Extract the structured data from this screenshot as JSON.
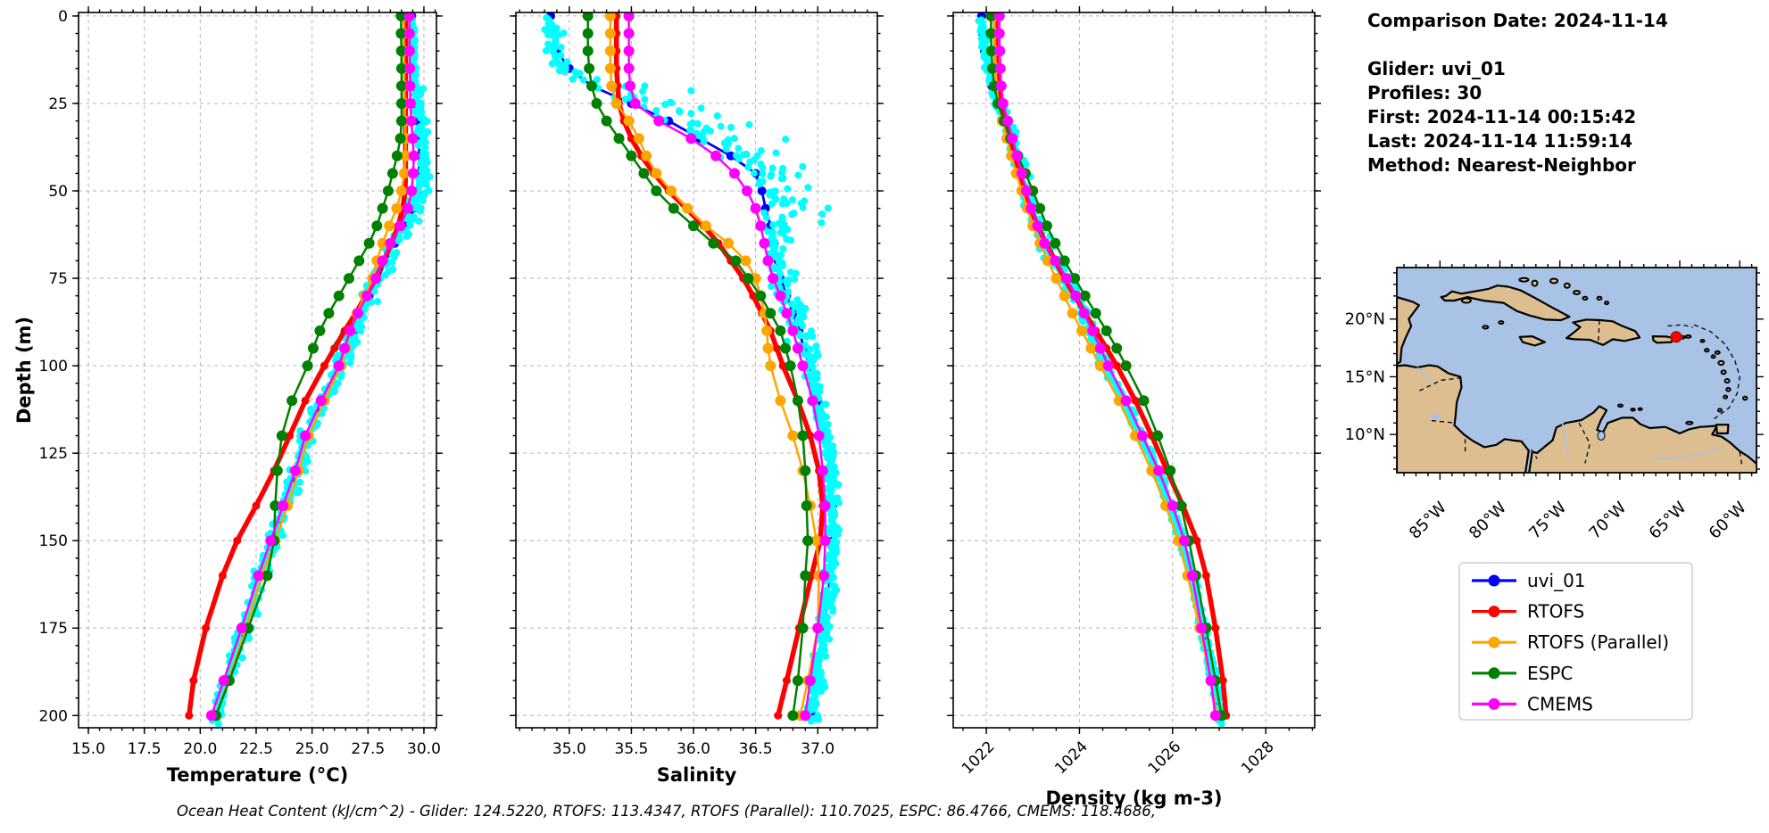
{
  "info_panel": {
    "title": "Comparison Date: 2024-11-14",
    "lines": [
      "Glider: uvi_01",
      "Profiles: 30",
      "First: 2024-11-14 00:15:42",
      "Last: 2024-11-14 11:59:14",
      "Method: Nearest-Neighbor"
    ]
  },
  "caption": "Ocean Heat Content (kJ/cm^2) - Glider: 124.5220,  RTOFS: 113.4347,  RTOFS (Parallel): 110.7025,  ESPC: 86.4766,  CMEMS: 118.4686,",
  "legend": {
    "entries": [
      {
        "label": "uvi_01",
        "color": "#0000ff"
      },
      {
        "label": "RTOFS",
        "color": "#ff0000"
      },
      {
        "label": "RTOFS (Parallel)",
        "color": "#ffa500"
      },
      {
        "label": "ESPC",
        "color": "#008000"
      },
      {
        "label": "CMEMS",
        "color": "#ff00ff"
      }
    ]
  },
  "map": {
    "ocean_color": "#a9c3e6",
    "land_color": "#ddbe90",
    "marker": {
      "lon": -65.3,
      "lat": 18.45,
      "color": "#ff0000"
    },
    "lon_ticks": [
      {
        "v": -85,
        "label": "85°W"
      },
      {
        "v": -80,
        "label": "80°W"
      },
      {
        "v": -75,
        "label": "75°W"
      },
      {
        "v": -70,
        "label": "70°W"
      },
      {
        "v": -65,
        "label": "65°W"
      },
      {
        "v": -60,
        "label": "60°W"
      }
    ],
    "lat_ticks": [
      {
        "v": 20,
        "label": "20°N"
      },
      {
        "v": 15,
        "label": "15°N"
      },
      {
        "v": 10,
        "label": "10°N"
      }
    ]
  },
  "chart_data": {
    "type": "line",
    "ylabel": "Depth (m)",
    "yrange": [
      -1,
      203.5
    ],
    "yticks": [
      0,
      25,
      50,
      75,
      100,
      125,
      150,
      175,
      200
    ],
    "ytick_labels": [
      "0",
      "25",
      "50",
      "75",
      "100",
      "125",
      "150",
      "175",
      "200"
    ],
    "y_minor_step": 5,
    "grid": true,
    "depths": [
      0,
      5,
      10,
      15,
      20,
      25,
      30,
      35,
      40,
      45,
      50,
      55,
      60,
      65,
      70,
      75,
      80,
      85,
      90,
      95,
      100,
      110,
      120,
      130,
      140,
      150,
      160,
      175,
      190,
      200
    ],
    "series_meta": [
      {
        "name": "uvi_01",
        "color": "#0000ff",
        "lw": 2.8,
        "marker_r": 5
      },
      {
        "name": "RTOFS",
        "color": "#ff0000",
        "lw": 5.5,
        "marker_r": 4.5
      },
      {
        "name": "RTOFS (Parallel)",
        "color": "#ffa500",
        "lw": 2.5,
        "marker_r": 6
      },
      {
        "name": "ESPC",
        "color": "#008000",
        "lw": 2.5,
        "marker_r": 6
      },
      {
        "name": "CMEMS",
        "color": "#ff00ff",
        "lw": 2.5,
        "marker_r": 6
      }
    ],
    "scatter_meta": {
      "label": "glider raw profiles",
      "color": "#00ffff",
      "marker_r": 4
    },
    "panels": [
      {
        "xlabel": "Temperature (°C)",
        "xrange": [
          14.56,
          30.56
        ],
        "xticks": [
          15,
          17.5,
          20,
          22.5,
          25,
          27.5,
          30
        ],
        "xtick_labels": [
          "15.0",
          "17.5",
          "20.0",
          "22.5",
          "25.0",
          "27.5",
          "30.0"
        ],
        "x_minor_step": 0.5,
        "rotate_xticks": false,
        "scatter_spread": [
          [
            20,
            0.1,
            0.1
          ],
          [
            52,
            0.38,
            0.12
          ],
          [
            95,
            0.0,
            0.4
          ],
          [
            150,
            0.0,
            0.34
          ],
          [
            999,
            0.0,
            0.3
          ]
        ],
        "series": {
          "uvi_01": [
            29.45,
            29.46,
            29.48,
            29.5,
            29.55,
            29.62,
            29.7,
            29.76,
            29.8,
            29.78,
            29.72,
            29.55,
            29.2,
            28.7,
            28.3,
            27.95,
            27.55,
            27.15,
            26.85,
            26.55,
            26.3,
            25.5,
            24.8,
            24.35,
            23.8,
            23.25,
            22.7,
            22.0,
            21.2,
            20.65
          ],
          "RTOFS": [
            29.18,
            29.18,
            29.18,
            29.18,
            29.18,
            29.18,
            29.18,
            29.18,
            29.18,
            29.18,
            29.16,
            29.05,
            28.85,
            28.55,
            28.2,
            27.85,
            27.4,
            26.95,
            26.45,
            26.0,
            25.55,
            24.7,
            24.0,
            23.3,
            22.5,
            21.65,
            21.0,
            20.25,
            19.7,
            19.5
          ],
          "RTOFS (Parallel)": [
            29.1,
            29.1,
            29.1,
            29.11,
            29.12,
            29.14,
            29.16,
            29.18,
            29.18,
            29.12,
            29.0,
            28.78,
            28.45,
            28.15,
            27.9,
            27.7,
            27.35,
            27.0,
            26.7,
            26.5,
            26.3,
            25.55,
            24.85,
            24.4,
            23.9,
            23.35,
            22.75,
            22.05,
            21.25,
            20.7
          ],
          "ESPC": [
            28.98,
            28.98,
            28.99,
            29.0,
            29.0,
            29.0,
            29.0,
            28.95,
            28.8,
            28.6,
            28.4,
            28.15,
            27.9,
            27.55,
            27.1,
            26.65,
            26.2,
            25.75,
            25.35,
            25.05,
            24.8,
            24.1,
            23.65,
            23.45,
            23.35,
            23.3,
            23.0,
            22.15,
            21.3,
            20.7
          ],
          "CMEMS": [
            29.35,
            29.35,
            29.36,
            29.37,
            29.38,
            29.4,
            29.44,
            29.5,
            29.55,
            29.52,
            29.45,
            29.28,
            28.95,
            28.5,
            28.15,
            27.85,
            27.45,
            27.05,
            26.7,
            26.45,
            26.2,
            25.4,
            24.7,
            24.25,
            23.7,
            23.15,
            22.6,
            21.85,
            21.05,
            20.5
          ]
        }
      },
      {
        "xlabel": "Salinity",
        "xrange": [
          34.57,
          37.48
        ],
        "xticks": [
          35.0,
          35.5,
          36.0,
          36.5,
          37.0
        ],
        "xtick_labels": [
          "35.0",
          "35.5",
          "36.0",
          "36.5",
          "37.0"
        ],
        "x_minor_step": 0.1,
        "rotate_xticks": false,
        "scatter_spread": [
          [
            18,
            -0.05,
            0.08
          ],
          [
            60,
            0.45,
            0.14
          ],
          [
            100,
            0.05,
            0.1
          ],
          [
            999,
            0.0,
            0.05
          ]
        ],
        "series": {
          "uvi_01": [
            34.85,
            34.86,
            34.9,
            35.0,
            35.18,
            35.5,
            35.8,
            36.05,
            36.3,
            36.5,
            36.55,
            36.58,
            36.62,
            36.65,
            36.68,
            36.7,
            36.75,
            36.8,
            36.85,
            36.89,
            36.93,
            37.0,
            37.06,
            37.1,
            37.12,
            37.12,
            37.1,
            37.05,
            37.0,
            36.96
          ],
          "RTOFS": [
            35.38,
            35.38,
            35.38,
            35.38,
            35.39,
            35.4,
            35.44,
            35.5,
            35.58,
            35.68,
            35.8,
            35.94,
            36.08,
            36.2,
            36.3,
            36.4,
            36.48,
            36.55,
            36.62,
            36.67,
            36.72,
            36.84,
            36.94,
            37.01,
            37.04,
            37.02,
            36.95,
            36.85,
            36.75,
            36.68
          ],
          "RTOFS (Parallel)": [
            35.33,
            35.33,
            35.33,
            35.33,
            35.34,
            35.38,
            35.48,
            35.56,
            35.62,
            35.7,
            35.82,
            35.95,
            36.1,
            36.28,
            36.42,
            36.5,
            36.54,
            36.57,
            36.59,
            36.6,
            36.62,
            36.7,
            36.8,
            36.88,
            36.94,
            36.99,
            37.01,
            37.0,
            36.92,
            36.86
          ],
          "ESPC": [
            35.15,
            35.15,
            35.15,
            35.16,
            35.18,
            35.22,
            35.3,
            35.4,
            35.5,
            35.6,
            35.7,
            35.84,
            36.0,
            36.16,
            36.34,
            36.44,
            36.54,
            36.62,
            36.7,
            36.74,
            36.78,
            36.84,
            36.88,
            36.9,
            36.91,
            36.92,
            36.9,
            36.88,
            36.84,
            36.8
          ],
          "CMEMS": [
            35.48,
            35.48,
            35.48,
            35.48,
            35.49,
            35.53,
            35.72,
            35.98,
            36.18,
            36.33,
            36.43,
            36.5,
            36.54,
            36.57,
            36.6,
            36.64,
            36.7,
            36.75,
            36.8,
            36.84,
            36.88,
            36.96,
            37.01,
            37.04,
            37.06,
            37.06,
            37.05,
            37.0,
            36.94,
            36.9
          ]
        }
      },
      {
        "xlabel": "Density (kg m-3)",
        "xrange": [
          1021.29,
          1029.05
        ],
        "xticks": [
          1022,
          1024,
          1026,
          1028
        ],
        "xtick_labels": [
          "1022",
          "1024",
          "1026",
          "1028"
        ],
        "x_minor_step": 0.5,
        "rotate_xticks": true,
        "scatter_spread": [
          [
            25,
            0.02,
            0.06
          ],
          [
            100,
            0.05,
            0.12
          ],
          [
            999,
            0.02,
            0.08
          ]
        ],
        "series": {
          "uvi_01": [
            1021.9,
            1021.92,
            1021.96,
            1022.02,
            1022.12,
            1022.25,
            1022.4,
            1022.52,
            1022.64,
            1022.74,
            1022.84,
            1022.95,
            1023.08,
            1023.22,
            1023.45,
            1023.7,
            1023.9,
            1024.08,
            1024.25,
            1024.4,
            1024.55,
            1024.95,
            1025.3,
            1025.65,
            1025.95,
            1026.2,
            1026.4,
            1026.65,
            1026.88,
            1027.0
          ],
          "RTOFS": [
            1022.2,
            1022.2,
            1022.21,
            1022.22,
            1022.25,
            1022.3,
            1022.38,
            1022.48,
            1022.58,
            1022.7,
            1022.82,
            1022.95,
            1023.1,
            1023.28,
            1023.48,
            1023.68,
            1023.9,
            1024.12,
            1024.35,
            1024.58,
            1024.8,
            1025.2,
            1025.55,
            1025.88,
            1026.22,
            1026.52,
            1026.72,
            1026.92,
            1027.08,
            1027.15
          ],
          "RTOFS (Parallel)": [
            1022.18,
            1022.18,
            1022.19,
            1022.2,
            1022.22,
            1022.26,
            1022.34,
            1022.44,
            1022.54,
            1022.64,
            1022.76,
            1022.88,
            1023.0,
            1023.15,
            1023.32,
            1023.5,
            1023.68,
            1023.85,
            1024.05,
            1024.25,
            1024.45,
            1024.85,
            1025.2,
            1025.55,
            1025.85,
            1026.12,
            1026.32,
            1026.58,
            1026.82,
            1026.95
          ],
          "ESPC": [
            1022.1,
            1022.1,
            1022.11,
            1022.13,
            1022.17,
            1022.25,
            1022.38,
            1022.52,
            1022.68,
            1022.84,
            1023.0,
            1023.15,
            1023.3,
            1023.48,
            1023.68,
            1023.9,
            1024.12,
            1024.35,
            1024.58,
            1024.8,
            1025.0,
            1025.38,
            1025.68,
            1025.95,
            1026.18,
            1026.35,
            1026.5,
            1026.72,
            1026.92,
            1027.05
          ],
          "CMEMS": [
            1022.28,
            1022.28,
            1022.29,
            1022.3,
            1022.32,
            1022.36,
            1022.46,
            1022.56,
            1022.66,
            1022.76,
            1022.86,
            1022.96,
            1023.1,
            1023.25,
            1023.48,
            1023.72,
            1023.92,
            1024.1,
            1024.28,
            1024.45,
            1024.62,
            1025.0,
            1025.35,
            1025.7,
            1026.0,
            1026.25,
            1026.42,
            1026.62,
            1026.82,
            1026.92
          ]
        }
      }
    ]
  }
}
